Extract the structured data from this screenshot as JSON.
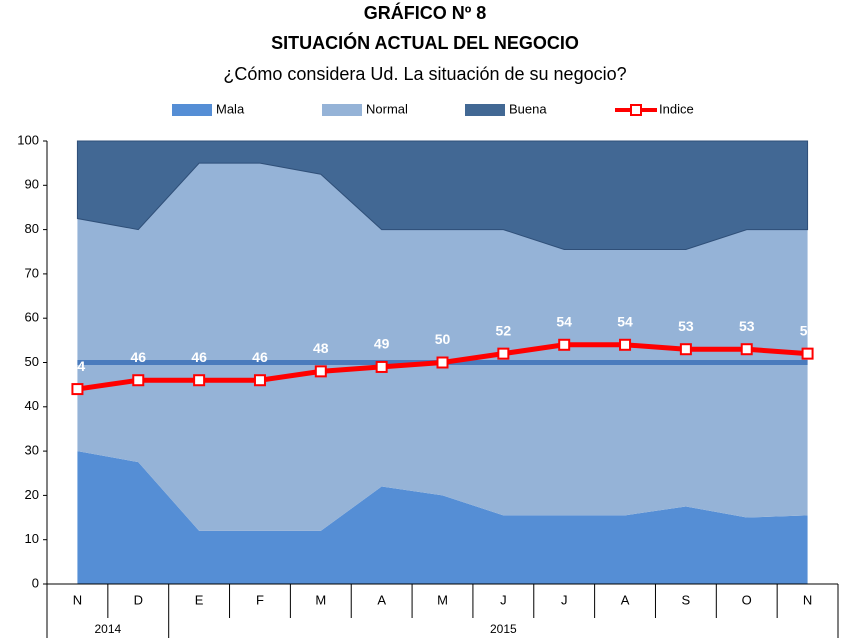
{
  "chart_data": {
    "type": "area",
    "stacked": true,
    "title": "GRÁFICO Nº 8",
    "subtitle": "SITUACIÓN ACTUAL DEL NEGOCIO",
    "question": "¿Cómo considera Ud. La situación de su negocio?",
    "categories": [
      "N",
      "D",
      "E",
      "F",
      "M",
      "A",
      "M",
      "J",
      "J",
      "A",
      "S",
      "O",
      "N"
    ],
    "x_groups": [
      {
        "label": "2014",
        "count": 2
      },
      {
        "label": "2015",
        "count": 11
      }
    ],
    "series": [
      {
        "name": "Mala",
        "color": "#558ed5",
        "values": [
          30,
          27.5,
          12,
          12,
          12,
          22,
          20,
          15.5,
          15.5,
          15.5,
          17.5,
          15,
          15.5
        ]
      },
      {
        "name": "Normal",
        "color": "#95b3d7",
        "values": [
          52.5,
          52.5,
          83,
          83,
          80.5,
          58,
          60,
          64.5,
          60,
          60,
          58,
          65,
          64.5
        ]
      },
      {
        "name": "Buena",
        "color": "#426894",
        "values": [
          17.5,
          20,
          5,
          5,
          7.5,
          20,
          20,
          20,
          24.5,
          24.5,
          24.5,
          20,
          20
        ]
      },
      {
        "name": "Indice",
        "type": "line",
        "color": "#ff0000",
        "values": [
          44,
          46,
          46,
          46,
          48,
          49,
          50,
          52,
          54,
          54,
          53,
          53,
          52
        ]
      }
    ],
    "reference_line": {
      "value": 50,
      "color": "#4a7bbd"
    },
    "ylim": [
      0,
      100
    ],
    "yticks": [
      0,
      10,
      20,
      30,
      40,
      50,
      60,
      70,
      80,
      90,
      100
    ],
    "grid": false
  }
}
